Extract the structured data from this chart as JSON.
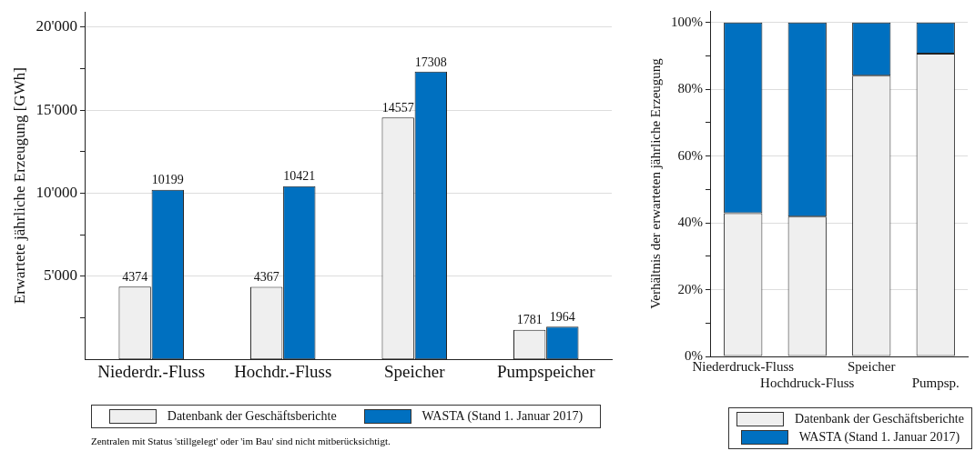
{
  "chart_data": [
    {
      "type": "bar",
      "ylabel": "Erwartete jährliche Erzeugung [GWh]",
      "categories": [
        "Niederdr.-Fluss",
        "Hochdr.-Fluss",
        "Speicher",
        "Pumpspeicher"
      ],
      "series": [
        {
          "name": "Datenbank der Geschäftsberichte",
          "color": "#efefef",
          "values": [
            4374,
            4367,
            14557,
            1781
          ]
        },
        {
          "name": "WASTA (Stand 1. Januar 2017)",
          "color": "#0070c0",
          "values": [
            10199,
            10421,
            17308,
            1964
          ]
        }
      ],
      "ylim": [
        0,
        20900
      ],
      "yticks": [
        {
          "value": 2500,
          "label": null
        },
        {
          "value": 5000,
          "label": "5'000"
        },
        {
          "value": 7500,
          "label": null
        },
        {
          "value": 10000,
          "label": "10'000"
        },
        {
          "value": 12500,
          "label": null
        },
        {
          "value": 15000,
          "label": "15'000"
        },
        {
          "value": 17500,
          "label": null
        },
        {
          "value": 20000,
          "label": "20'000"
        }
      ],
      "grid": "y",
      "legend": "bottom",
      "data_labels": true,
      "annotations": [
        "Zentralen mit Status 'stillgelegt' oder 'im Bau' sind nicht mitberücksichtigt."
      ]
    },
    {
      "type": "bar",
      "ylabel": "Verhältnis der erwarteten jährliche Erzeugung",
      "categories": [
        "Niederdruck-Fluss",
        "Hochdruck-Fluss",
        "Speicher",
        "Pumpsp."
      ],
      "stacked": true,
      "series": [
        {
          "name": "Datenbank der Geschäftsberichte",
          "color": "#efefef",
          "values": [
            42.9,
            41.9,
            84.1,
            90.7
          ]
        },
        {
          "name": "WASTA (Stand 1. Januar 2017)",
          "color": "#0070c0",
          "values": [
            57.1,
            58.1,
            15.9,
            9.3
          ]
        }
      ],
      "ylim": [
        0,
        103.5
      ],
      "yticks": [
        {
          "value": 0,
          "label": "0%"
        },
        {
          "value": 10,
          "label": null
        },
        {
          "value": 20,
          "label": "20%"
        },
        {
          "value": 30,
          "label": null
        },
        {
          "value": 40,
          "label": "40%"
        },
        {
          "value": 50,
          "label": null
        },
        {
          "value": 60,
          "label": "60%"
        },
        {
          "value": 70,
          "label": null
        },
        {
          "value": 80,
          "label": "80%"
        },
        {
          "value": 90,
          "label": null
        },
        {
          "value": 100,
          "label": "100%"
        }
      ],
      "grid": "y",
      "legend": "bottom"
    }
  ]
}
